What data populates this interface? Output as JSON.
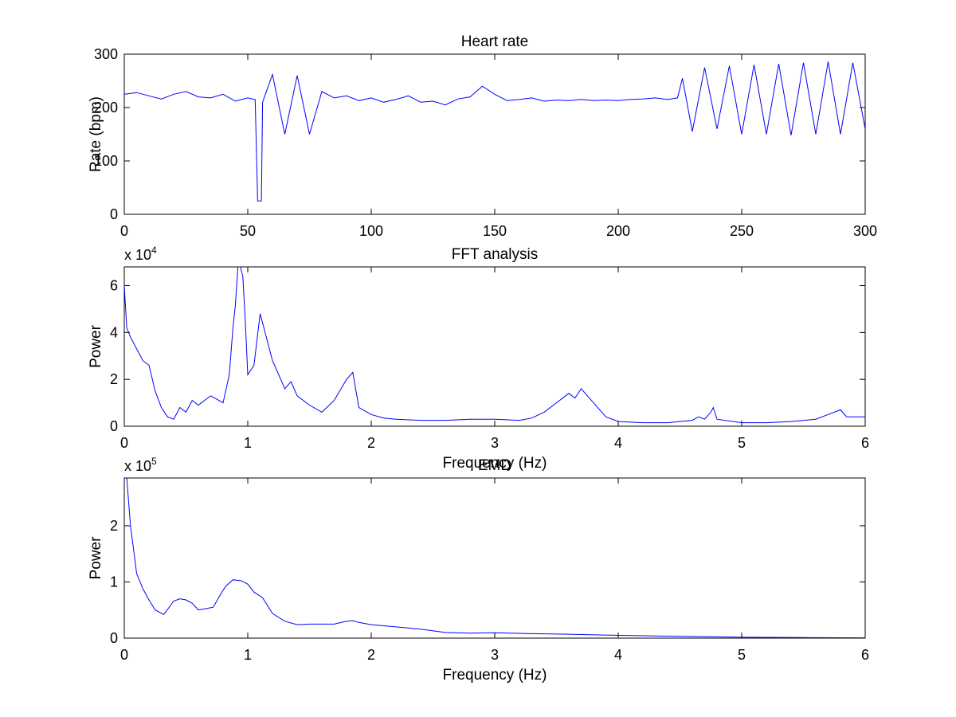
{
  "figure": {
    "background": "#ffffff",
    "line_color": "#0000ff"
  },
  "chart_data": [
    {
      "type": "line",
      "title": "Heart rate",
      "xlabel": "",
      "ylabel": "Rate (bpm)",
      "xlim": [
        0,
        300
      ],
      "ylim": [
        0,
        300
      ],
      "xticks": [
        "0",
        "50",
        "100",
        "150",
        "200",
        "250",
        "300"
      ],
      "yticks": [
        "0",
        "100",
        "200",
        "300"
      ],
      "exponent": null,
      "grid": false,
      "series": [
        {
          "x": [
            0,
            5,
            10,
            15,
            20,
            25,
            30,
            35,
            40,
            45,
            50,
            53,
            54,
            54.5,
            55,
            55.5,
            56,
            60,
            65,
            70,
            75,
            80,
            85,
            90,
            95,
            100,
            105,
            110,
            115,
            120,
            125,
            130,
            135,
            140,
            145,
            150,
            155,
            160,
            165,
            170,
            175,
            180,
            185,
            190,
            195,
            200,
            205,
            210,
            215,
            220,
            224,
            226,
            230,
            235,
            240,
            245,
            250,
            255,
            260,
            265,
            270,
            275,
            280,
            285,
            290,
            295,
            300
          ],
          "y": [
            225,
            228,
            222,
            216,
            225,
            230,
            220,
            218,
            225,
            212,
            218,
            215,
            25,
            25,
            25,
            25,
            210,
            262,
            150,
            260,
            150,
            230,
            218,
            222,
            213,
            218,
            210,
            215,
            222,
            210,
            212,
            205,
            216,
            220,
            240,
            225,
            213,
            215,
            218,
            212,
            214,
            213,
            215,
            213,
            214,
            213,
            215,
            216,
            218,
            215,
            218,
            255,
            155,
            275,
            160,
            278,
            150,
            280,
            150,
            282,
            148,
            284,
            150,
            286,
            150,
            284,
            160
          ]
        }
      ]
    },
    {
      "type": "line",
      "title": "FFT analysis",
      "xlabel": "Frequency (Hz)",
      "ylabel": "Power",
      "xlim": [
        0,
        6
      ],
      "ylim": [
        0,
        68000
      ],
      "xticks": [
        "0",
        "1",
        "2",
        "3",
        "4",
        "5",
        "6"
      ],
      "yticks": [
        "0",
        "2",
        "4",
        "6"
      ],
      "exponent": {
        "base": "x 10",
        "power": "4"
      },
      "grid": false,
      "series": [
        {
          "x": [
            0,
            0.02,
            0.05,
            0.1,
            0.15,
            0.2,
            0.25,
            0.3,
            0.35,
            0.4,
            0.45,
            0.5,
            0.55,
            0.6,
            0.7,
            0.8,
            0.85,
            0.88,
            0.9,
            0.92,
            0.94,
            0.96,
            0.98,
            1.0,
            1.05,
            1.1,
            1.15,
            1.2,
            1.25,
            1.3,
            1.35,
            1.4,
            1.5,
            1.6,
            1.7,
            1.8,
            1.85,
            1.9,
            2.0,
            2.1,
            2.2,
            2.4,
            2.6,
            2.8,
            3.0,
            3.2,
            3.3,
            3.4,
            3.5,
            3.6,
            3.65,
            3.7,
            3.75,
            3.8,
            3.9,
            4.0,
            4.2,
            4.4,
            4.6,
            4.65,
            4.7,
            4.75,
            4.77,
            4.8,
            5.0,
            5.2,
            5.4,
            5.6,
            5.7,
            5.8,
            5.85,
            6.0
          ],
          "y": [
            60000,
            42000,
            38000,
            33000,
            28000,
            26000,
            15000,
            8000,
            4000,
            3000,
            8000,
            6000,
            11000,
            9000,
            13000,
            10000,
            22000,
            42000,
            52000,
            68000,
            68000,
            64000,
            45000,
            22000,
            26000,
            48000,
            38000,
            28000,
            22000,
            16000,
            19000,
            13000,
            9000,
            6000,
            11000,
            20000,
            23000,
            8000,
            5000,
            3500,
            3000,
            2500,
            2500,
            3000,
            3000,
            2500,
            3500,
            6000,
            10000,
            14000,
            12000,
            16000,
            13000,
            10000,
            4000,
            2000,
            1500,
            1500,
            2500,
            4000,
            3000,
            6000,
            8000,
            3000,
            1500,
            1500,
            2000,
            3000,
            5000,
            7000,
            4000,
            4000
          ]
        }
      ]
    },
    {
      "type": "line",
      "title": "EMD",
      "xlabel": "Frequency (Hz)",
      "ylabel": "Power",
      "xlim": [
        0,
        6
      ],
      "ylim": [
        0,
        285000
      ],
      "xticks": [
        "0",
        "1",
        "2",
        "3",
        "4",
        "5",
        "6"
      ],
      "yticks": [
        "0",
        "1",
        "2"
      ],
      "exponent": {
        "base": "x 10",
        "power": "5"
      },
      "grid": false,
      "series": [
        {
          "x": [
            0.02,
            0.05,
            0.08,
            0.1,
            0.15,
            0.2,
            0.25,
            0.32,
            0.4,
            0.45,
            0.5,
            0.55,
            0.6,
            0.65,
            0.72,
            0.78,
            0.82,
            0.88,
            0.95,
            1.0,
            1.05,
            1.12,
            1.2,
            1.3,
            1.4,
            1.5,
            1.6,
            1.7,
            1.8,
            1.85,
            1.9,
            2.0,
            2.2,
            2.4,
            2.6,
            2.8,
            3.0,
            3.3,
            3.6,
            4.0,
            4.3,
            4.7,
            5.0,
            5.5,
            6.0
          ],
          "y": [
            285000,
            200000,
            150000,
            115000,
            88000,
            68000,
            50000,
            42000,
            66000,
            70000,
            68000,
            62000,
            50000,
            52000,
            55000,
            78000,
            92000,
            104000,
            102000,
            96000,
            82000,
            72000,
            44000,
            30000,
            24000,
            25000,
            25000,
            25000,
            30000,
            31000,
            28000,
            24000,
            20000,
            16000,
            10000,
            9000,
            9500,
            8000,
            7000,
            5000,
            4000,
            2500,
            1500,
            1000,
            500
          ]
        }
      ]
    }
  ]
}
